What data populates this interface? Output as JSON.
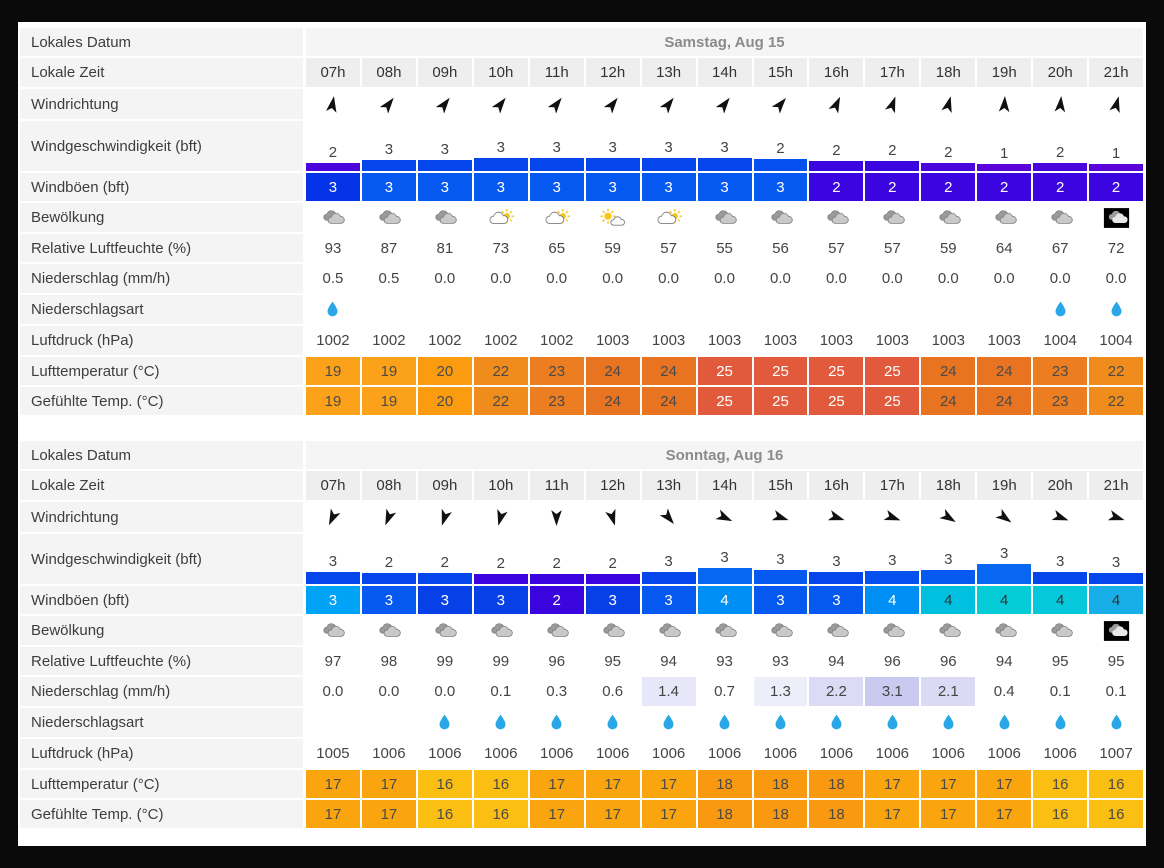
{
  "page": {
    "background": "#0a0a0a",
    "panel_background": "#ffffff"
  },
  "labels": {
    "date": "Lokales Datum",
    "time": "Lokale Zeit",
    "wind_dir": "Windrichtung",
    "wind_speed": "Windgeschwindigkeit (bft)",
    "gusts": "Windböen (bft)",
    "clouds": "Bewölkung",
    "humidity": "Relative Luftfeuchte (%)",
    "precip": "Niederschlag (mm/h)",
    "precip_type": "Niederschlagsart",
    "pressure": "Luftdruck (hPa)",
    "temp": "Lufttemperatur (°C)",
    "feels": "Gefühlte Temp. (°C)"
  },
  "hours": [
    "07h",
    "08h",
    "09h",
    "10h",
    "11h",
    "12h",
    "13h",
    "14h",
    "15h",
    "16h",
    "17h",
    "18h",
    "19h",
    "20h",
    "21h"
  ],
  "icon_colors": {
    "cloud_front": "#c9c9c9",
    "cloud_back": "#9a9a9a",
    "cloud_stroke": "#7d7d7d",
    "sun": "#f5c518",
    "night_bg": "#000000",
    "night_cloud": "#e8e8e8",
    "raindrop": "#2ba7e8",
    "arrow": "#111111"
  },
  "temp_colors": {
    "16": {
      "bg": "#fbbe12",
      "fg": "#4a4a4a"
    },
    "17": {
      "bg": "#faa50e",
      "fg": "#4a4a4a"
    },
    "18": {
      "bg": "#f8990f",
      "fg": "#4a4a4a"
    },
    "19": {
      "bg": "#fca11a",
      "fg": "#4a4a4a"
    },
    "20": {
      "bg": "#fa9b10",
      "fg": "#4a4a4a"
    },
    "22": {
      "bg": "#f08c1c",
      "fg": "#4a4a4a"
    },
    "23": {
      "bg": "#ec7d20",
      "fg": "#4a4a4a"
    },
    "24": {
      "bg": "#e87320",
      "fg": "#4a4a4a"
    },
    "25": {
      "bg": "#e15a3c",
      "fg": "#ffffff"
    }
  },
  "days": [
    {
      "date": "Samstag, Aug 15",
      "wind_dir_deg": [
        10,
        38,
        38,
        38,
        38,
        38,
        38,
        38,
        40,
        25,
        20,
        15,
        3,
        5,
        15
      ],
      "wind_speed": [
        2,
        3,
        3,
        3,
        3,
        3,
        3,
        3,
        2,
        2,
        2,
        2,
        1,
        2,
        1
      ],
      "wind_bar_height": [
        8,
        11,
        11,
        13,
        13,
        13,
        13,
        13,
        12,
        10,
        10,
        8,
        7,
        8,
        7
      ],
      "wind_bar_color": [
        "#4a04dc",
        "#0545ec",
        "#0545ec",
        "#0545ec",
        "#0545ec",
        "#0545ec",
        "#0545ec",
        "#0545ec",
        "#0551f0",
        "#3b05df",
        "#3b05df",
        "#4a04dc",
        "#5a04d8",
        "#4a04dc",
        "#5a04d8"
      ],
      "gusts": [
        3,
        3,
        3,
        3,
        3,
        3,
        3,
        3,
        3,
        2,
        2,
        2,
        2,
        2,
        2
      ],
      "gust_bg": [
        "#0433e8",
        "#0659f0",
        "#0659f0",
        "#0659f0",
        "#0659f0",
        "#0659f0",
        "#0659f0",
        "#0659f0",
        "#0659f0",
        "#3b05df",
        "#3b05df",
        "#3b05df",
        "#3b05df",
        "#3b05df",
        "#3b05df"
      ],
      "gust_fg": [
        "#ffffff",
        "#ffffff",
        "#ffffff",
        "#ffffff",
        "#ffffff",
        "#ffffff",
        "#ffffff",
        "#ffffff",
        "#ffffff",
        "#ffffff",
        "#ffffff",
        "#ffffff",
        "#ffffff",
        "#ffffff",
        "#ffffff"
      ],
      "clouds": [
        "cloudy",
        "cloudy",
        "cloudy",
        "partly",
        "partly",
        "sun",
        "partly",
        "cloudy",
        "cloudy",
        "cloudy",
        "cloudy",
        "cloudy",
        "cloudy",
        "cloudy",
        "night"
      ],
      "humidity": [
        93,
        87,
        81,
        73,
        65,
        59,
        57,
        55,
        56,
        57,
        57,
        59,
        64,
        67,
        72
      ],
      "precip": [
        "0.5",
        "0.5",
        "0.0",
        "0.0",
        "0.0",
        "0.0",
        "0.0",
        "0.0",
        "0.0",
        "0.0",
        "0.0",
        "0.0",
        "0.0",
        "0.0",
        "0.0"
      ],
      "precip_bg": [
        null,
        null,
        null,
        null,
        null,
        null,
        null,
        null,
        null,
        null,
        null,
        null,
        null,
        null,
        null
      ],
      "precip_type": [
        1,
        0,
        0,
        0,
        0,
        0,
        0,
        0,
        0,
        0,
        0,
        0,
        0,
        1,
        1
      ],
      "pressure": [
        1002,
        1002,
        1002,
        1002,
        1002,
        1003,
        1003,
        1003,
        1003,
        1003,
        1003,
        1003,
        1003,
        1004,
        1004
      ],
      "temp": [
        19,
        19,
        20,
        22,
        23,
        24,
        24,
        25,
        25,
        25,
        25,
        24,
        24,
        23,
        22
      ],
      "feels": [
        19,
        19,
        20,
        22,
        23,
        24,
        24,
        25,
        25,
        25,
        25,
        24,
        24,
        23,
        22
      ]
    },
    {
      "date": "Sonntag, Aug 16",
      "wind_dir_deg": [
        205,
        202,
        198,
        195,
        180,
        163,
        140,
        115,
        108,
        108,
        110,
        122,
        126,
        110,
        108
      ],
      "wind_speed": [
        3,
        2,
        2,
        2,
        2,
        2,
        3,
        3,
        3,
        3,
        3,
        3,
        3,
        3,
        3
      ],
      "wind_bar_height": [
        12,
        11,
        11,
        10,
        10,
        10,
        12,
        16,
        14,
        12,
        13,
        14,
        20,
        12,
        11
      ],
      "wind_bar_color": [
        "#0545ec",
        "#0545ec",
        "#0545ec",
        "#3b05df",
        "#3b05df",
        "#3b05df",
        "#0545ec",
        "#0668f2",
        "#0659f0",
        "#0545ec",
        "#0551f0",
        "#0659f0",
        "#0767f2",
        "#0545ec",
        "#0545ec"
      ],
      "gusts": [
        3,
        3,
        3,
        3,
        2,
        3,
        3,
        4,
        3,
        3,
        4,
        4,
        4,
        4,
        4
      ],
      "gust_bg": [
        "#00a3f5",
        "#0659f0",
        "#0840e8",
        "#0840e8",
        "#3b05df",
        "#0840e8",
        "#0659f0",
        "#0090f5",
        "#0659f0",
        "#0659f0",
        "#0090f5",
        "#00c0e0",
        "#06ccd8",
        "#06c8dc",
        "#18aee8"
      ],
      "gust_fg": [
        "#ffffff",
        "#ffffff",
        "#ffffff",
        "#ffffff",
        "#ffffff",
        "#ffffff",
        "#ffffff",
        "#ffffff",
        "#ffffff",
        "#ffffff",
        "#ffffff",
        "#333333",
        "#333333",
        "#333333",
        "#333333"
      ],
      "clouds": [
        "cloudy",
        "cloudy",
        "cloudy",
        "cloudy",
        "cloudy",
        "cloudy",
        "cloudy",
        "cloudy",
        "cloudy",
        "cloudy",
        "cloudy",
        "cloudy",
        "cloudy",
        "cloudy",
        "night"
      ],
      "humidity": [
        97,
        98,
        99,
        99,
        96,
        95,
        94,
        93,
        93,
        94,
        96,
        96,
        94,
        95,
        95
      ],
      "precip": [
        "0.0",
        "0.0",
        "0.0",
        "0.1",
        "0.3",
        "0.6",
        "1.4",
        "0.7",
        "1.3",
        "2.2",
        "3.1",
        "2.1",
        "0.4",
        "0.1",
        "0.1"
      ],
      "precip_bg": [
        null,
        null,
        null,
        null,
        null,
        null,
        "#e7e7f9",
        null,
        "#eeeefb",
        "#dbdbf6",
        "#cacaf1",
        "#dadaf5",
        null,
        null,
        null
      ],
      "precip_type": [
        0,
        0,
        1,
        1,
        1,
        1,
        1,
        1,
        1,
        1,
        1,
        1,
        1,
        1,
        1
      ],
      "pressure": [
        1005,
        1006,
        1006,
        1006,
        1006,
        1006,
        1006,
        1006,
        1006,
        1006,
        1006,
        1006,
        1006,
        1006,
        1007
      ],
      "temp": [
        17,
        17,
        16,
        16,
        17,
        17,
        17,
        18,
        18,
        18,
        17,
        17,
        17,
        16,
        16
      ],
      "feels": [
        17,
        17,
        16,
        16,
        17,
        17,
        17,
        18,
        18,
        18,
        17,
        17,
        17,
        16,
        16
      ]
    }
  ]
}
